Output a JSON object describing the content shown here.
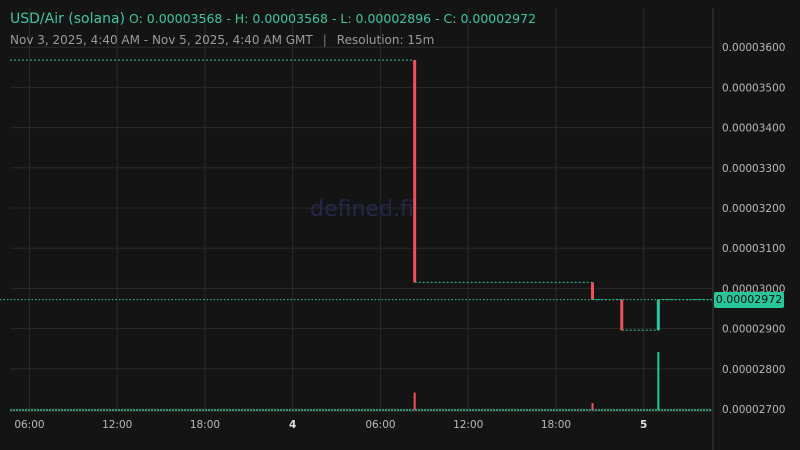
{
  "header": {
    "pair": "USD/Air (solana)",
    "ohlc": "O: 0.00003568 - H: 0.00003568 - L: 0.00002896 - C: 0.00002972",
    "range": "Nov 3, 2025, 4:40 AM - Nov 5, 2025, 4:40 AM GMT",
    "separator": "|",
    "resolution": "Resolution: 15m"
  },
  "watermark": "defined.fi",
  "current_price_label": "0.00002972",
  "colors": {
    "background": "#141414",
    "grid": "#2a2a2a",
    "up": "#26c79a",
    "down": "#f0505a",
    "text": "#b8b8b8",
    "watermark": "#23284a"
  },
  "chart_data": {
    "type": "candlestick",
    "y_ticks": [
      "0.00002700",
      "0.00002800",
      "0.00002900",
      "0.00003000",
      "0.00003100",
      "0.00003200",
      "0.00003300",
      "0.00003400",
      "0.00003500",
      "0.00003600"
    ],
    "ylim": [
      2.7e-05,
      3.62e-05
    ],
    "x_ticks": [
      {
        "label": "06:00",
        "bold": false
      },
      {
        "label": "12:00",
        "bold": false
      },
      {
        "label": "18:00",
        "bold": false
      },
      {
        "label": "4",
        "bold": true
      },
      {
        "label": "06:00",
        "bold": false
      },
      {
        "label": "12:00",
        "bold": false
      },
      {
        "label": "18:00",
        "bold": false
      },
      {
        "label": "5",
        "bold": true
      }
    ],
    "x_range_hours": [
      0,
      48
    ],
    "x_tick_hours": [
      1.33,
      7.33,
      13.33,
      19.33,
      25.33,
      31.33,
      37.33,
      43.33
    ],
    "segments": [
      {
        "t0": 0,
        "t1": 27.67,
        "price": 3.568e-05,
        "dir": "flat"
      },
      {
        "t0": 27.67,
        "t1": 39.83,
        "price": 3.015e-05,
        "dir": "flat"
      },
      {
        "t0": 39.83,
        "t1": 41.83,
        "price": 2.972e-05,
        "dir": "flat"
      },
      {
        "t0": 41.83,
        "t1": 44.33,
        "price": 2.896e-05,
        "dir": "flat"
      },
      {
        "t0": 44.33,
        "t1": 48,
        "price": 2.972e-05,
        "dir": "flat"
      }
    ],
    "candles": [
      {
        "t": 27.67,
        "open": 3.568e-05,
        "close": 3.015e-05,
        "dir": "down"
      },
      {
        "t": 39.83,
        "open": 3.015e-05,
        "close": 2.972e-05,
        "dir": "down"
      },
      {
        "t": 41.83,
        "open": 2.972e-05,
        "close": 2.896e-05,
        "dir": "down"
      },
      {
        "t": 44.33,
        "open": 2.896e-05,
        "close": 2.972e-05,
        "dir": "up"
      }
    ],
    "volume": [
      {
        "t": 27.67,
        "value": 0.3,
        "dir": "down"
      },
      {
        "t": 39.83,
        "value": 0.12,
        "dir": "down"
      },
      {
        "t": 44.33,
        "value": 1.0,
        "dir": "up"
      }
    ],
    "last_price": 2.972e-05
  }
}
